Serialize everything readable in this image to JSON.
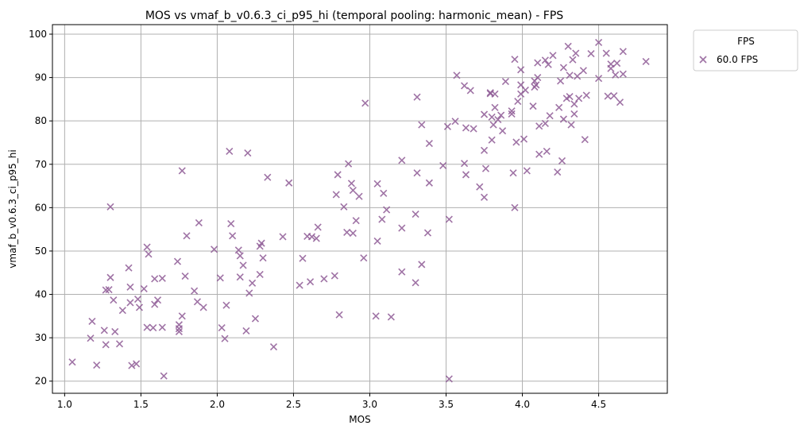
{
  "chart_data": {
    "type": "scatter",
    "title": "MOS vs vmaf_b_v0.6.3_ci_p95_hi (temporal pooling: harmonic_mean) - FPS",
    "xlabel": "MOS",
    "ylabel": "vmaf_b_v0.6.3_ci_p95_hi",
    "xlim": [
      0.92,
      4.95
    ],
    "ylim": [
      17.2,
      102.2
    ],
    "xticks": [
      1.0,
      1.5,
      2.0,
      2.5,
      3.0,
      3.5,
      4.0,
      4.5
    ],
    "xtick_labels": [
      "1.0",
      "1.5",
      "2.0",
      "2.5",
      "3.0",
      "3.5",
      "4.0",
      "4.5"
    ],
    "yticks": [
      20,
      30,
      40,
      50,
      60,
      70,
      80,
      90,
      100
    ],
    "ytick_labels": [
      "20",
      "30",
      "40",
      "50",
      "60",
      "70",
      "80",
      "90",
      "100"
    ],
    "grid": true,
    "marker": "x",
    "legend": {
      "title": "FPS",
      "placement": "outside-top-right"
    },
    "series": [
      {
        "name": "60.0 FPS",
        "color": "#8e5b95",
        "points": [
          [
            1.05,
            24.4
          ],
          [
            1.17,
            29.9
          ],
          [
            1.18,
            33.8
          ],
          [
            1.21,
            23.7
          ],
          [
            1.26,
            31.7
          ],
          [
            1.27,
            28.4
          ],
          [
            1.27,
            41.0
          ],
          [
            1.29,
            41.1
          ],
          [
            1.3,
            43.9
          ],
          [
            1.3,
            60.2
          ],
          [
            1.32,
            38.7
          ],
          [
            1.33,
            31.4
          ],
          [
            1.36,
            28.6
          ],
          [
            1.38,
            36.3
          ],
          [
            1.42,
            46.1
          ],
          [
            1.43,
            38.1
          ],
          [
            1.43,
            41.7
          ],
          [
            1.44,
            23.6
          ],
          [
            1.47,
            24.0
          ],
          [
            1.48,
            38.9
          ],
          [
            1.49,
            37.0
          ],
          [
            1.52,
            41.3
          ],
          [
            1.54,
            32.4
          ],
          [
            1.54,
            50.9
          ],
          [
            1.55,
            49.3
          ],
          [
            1.58,
            32.3
          ],
          [
            1.59,
            43.6
          ],
          [
            1.59,
            37.7
          ],
          [
            1.61,
            38.7
          ],
          [
            1.64,
            32.4
          ],
          [
            1.64,
            43.7
          ],
          [
            1.65,
            21.2
          ],
          [
            1.74,
            47.6
          ],
          [
            1.75,
            31.4
          ],
          [
            1.75,
            33.0
          ],
          [
            1.75,
            32.1
          ],
          [
            1.77,
            68.5
          ],
          [
            1.77,
            35.0
          ],
          [
            1.79,
            44.2
          ],
          [
            1.8,
            53.5
          ],
          [
            1.85,
            40.8
          ],
          [
            1.87,
            38.3
          ],
          [
            1.88,
            56.5
          ],
          [
            1.91,
            37.0
          ],
          [
            1.98,
            50.4
          ],
          [
            2.02,
            43.8
          ],
          [
            2.03,
            32.3
          ],
          [
            2.05,
            29.8
          ],
          [
            2.06,
            37.5
          ],
          [
            2.08,
            73.0
          ],
          [
            2.09,
            56.3
          ],
          [
            2.1,
            53.5
          ],
          [
            2.14,
            50.2
          ],
          [
            2.15,
            48.9
          ],
          [
            2.15,
            44.0
          ],
          [
            2.17,
            46.7
          ],
          [
            2.19,
            31.6
          ],
          [
            2.2,
            72.6
          ],
          [
            2.21,
            40.3
          ],
          [
            2.23,
            42.6
          ],
          [
            2.25,
            34.4
          ],
          [
            2.28,
            51.1
          ],
          [
            2.28,
            44.6
          ],
          [
            2.29,
            51.8
          ],
          [
            2.3,
            48.4
          ],
          [
            2.33,
            67.0
          ],
          [
            2.37,
            27.9
          ],
          [
            2.43,
            53.3
          ],
          [
            2.47,
            65.7
          ],
          [
            2.54,
            42.1
          ],
          [
            2.56,
            48.3
          ],
          [
            2.59,
            53.4
          ],
          [
            2.61,
            42.9
          ],
          [
            2.62,
            53.3
          ],
          [
            2.65,
            52.9
          ],
          [
            2.66,
            55.5
          ],
          [
            2.7,
            43.6
          ],
          [
            2.77,
            44.3
          ],
          [
            2.78,
            63.0
          ],
          [
            2.79,
            67.6
          ],
          [
            2.8,
            35.3
          ],
          [
            2.83,
            60.2
          ],
          [
            2.85,
            54.3
          ],
          [
            2.86,
            70.1
          ],
          [
            2.88,
            65.6
          ],
          [
            2.89,
            54.1
          ],
          [
            2.91,
            57.0
          ],
          [
            2.89,
            64.0
          ],
          [
            2.93,
            62.6
          ],
          [
            2.96,
            48.4
          ],
          [
            2.97,
            84.1
          ],
          [
            3.04,
            35.0
          ],
          [
            3.05,
            65.5
          ],
          [
            3.05,
            52.3
          ],
          [
            3.08,
            57.3
          ],
          [
            3.09,
            63.3
          ],
          [
            3.11,
            59.5
          ],
          [
            3.14,
            34.8
          ],
          [
            3.21,
            45.2
          ],
          [
            3.21,
            55.3
          ],
          [
            3.21,
            70.9
          ],
          [
            3.3,
            42.7
          ],
          [
            3.3,
            58.5
          ],
          [
            3.31,
            85.5
          ],
          [
            3.31,
            68.0
          ],
          [
            3.34,
            79.1
          ],
          [
            3.34,
            46.9
          ],
          [
            3.38,
            54.2
          ],
          [
            3.39,
            74.8
          ],
          [
            3.39,
            65.7
          ],
          [
            3.48,
            69.7
          ],
          [
            3.51,
            78.7
          ],
          [
            3.52,
            57.3
          ],
          [
            3.52,
            20.5
          ],
          [
            3.56,
            79.9
          ],
          [
            3.57,
            90.5
          ],
          [
            3.62,
            70.2
          ],
          [
            3.62,
            88.1
          ],
          [
            3.63,
            67.6
          ],
          [
            3.63,
            78.4
          ],
          [
            3.66,
            87.0
          ],
          [
            3.68,
            78.2
          ],
          [
            3.72,
            64.8
          ],
          [
            3.75,
            73.2
          ],
          [
            3.75,
            62.4
          ],
          [
            3.75,
            81.5
          ],
          [
            3.76,
            69.0
          ],
          [
            3.79,
            86.3
          ],
          [
            3.79,
            86.5
          ],
          [
            3.8,
            80.9
          ],
          [
            3.8,
            75.6
          ],
          [
            3.81,
            79.1
          ],
          [
            3.82,
            86.2
          ],
          [
            3.82,
            83.1
          ],
          [
            3.84,
            80.3
          ],
          [
            3.86,
            81.3
          ],
          [
            3.87,
            77.7
          ],
          [
            3.89,
            89.1
          ],
          [
            3.93,
            81.6
          ],
          [
            3.93,
            82.3
          ],
          [
            3.94,
            68.0
          ],
          [
            3.95,
            60.0
          ],
          [
            3.95,
            94.2
          ],
          [
            3.96,
            75.1
          ],
          [
            3.97,
            84.5
          ],
          [
            3.99,
            88.3
          ],
          [
            3.99,
            91.8
          ],
          [
            3.99,
            86.2
          ],
          [
            4.01,
            75.8
          ],
          [
            4.02,
            87.1
          ],
          [
            4.03,
            68.5
          ],
          [
            4.07,
            83.4
          ],
          [
            4.08,
            89.2
          ],
          [
            4.08,
            87.8
          ],
          [
            4.09,
            88.3
          ],
          [
            4.1,
            93.4
          ],
          [
            4.1,
            90.0
          ],
          [
            4.11,
            72.3
          ],
          [
            4.11,
            78.8
          ],
          [
            4.15,
            94.0
          ],
          [
            4.15,
            79.4
          ],
          [
            4.16,
            73.0
          ],
          [
            4.17,
            93.0
          ],
          [
            4.18,
            81.2
          ],
          [
            4.2,
            95.1
          ],
          [
            4.23,
            68.2
          ],
          [
            4.24,
            83.1
          ],
          [
            4.25,
            89.2
          ],
          [
            4.26,
            70.8
          ],
          [
            4.27,
            80.4
          ],
          [
            4.27,
            92.3
          ],
          [
            4.29,
            85.2
          ],
          [
            4.3,
            97.2
          ],
          [
            4.31,
            90.5
          ],
          [
            4.31,
            85.6
          ],
          [
            4.32,
            79.1
          ],
          [
            4.33,
            94.1
          ],
          [
            4.34,
            81.6
          ],
          [
            4.34,
            83.9
          ],
          [
            4.35,
            95.6
          ],
          [
            4.36,
            90.3
          ],
          [
            4.37,
            85.2
          ],
          [
            4.4,
            91.6
          ],
          [
            4.41,
            75.7
          ],
          [
            4.42,
            85.9
          ],
          [
            4.45,
            95.5
          ],
          [
            4.5,
            98.1
          ],
          [
            4.5,
            89.8
          ],
          [
            4.55,
            95.6
          ],
          [
            4.56,
            85.7
          ],
          [
            4.58,
            93.1
          ],
          [
            4.58,
            92.1
          ],
          [
            4.6,
            85.8
          ],
          [
            4.61,
            90.6
          ],
          [
            4.62,
            93.3
          ],
          [
            4.64,
            84.3
          ],
          [
            4.66,
            96.0
          ],
          [
            4.66,
            90.8
          ],
          [
            4.81,
            93.7
          ]
        ]
      }
    ]
  }
}
